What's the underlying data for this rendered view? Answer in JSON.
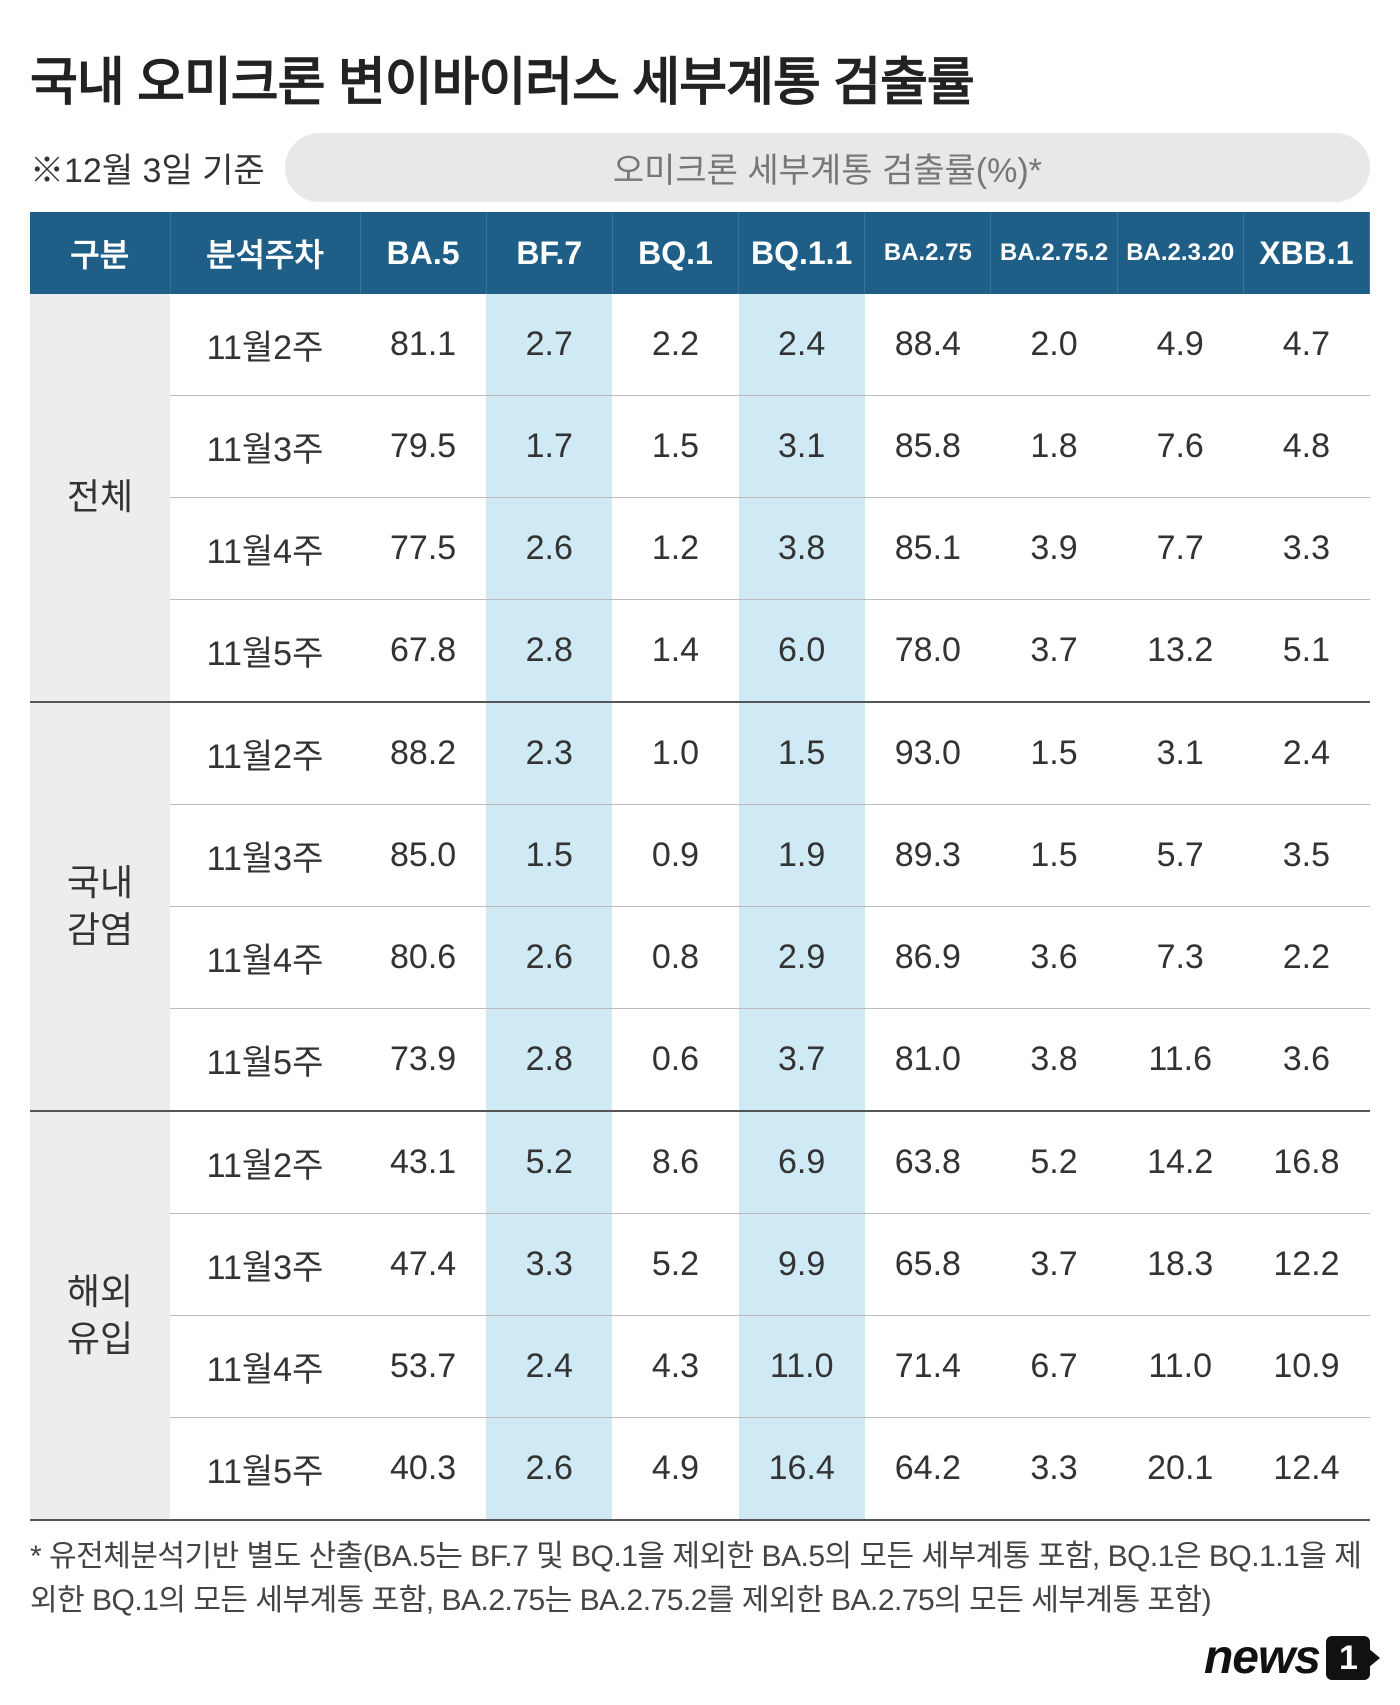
{
  "title": "국내 오미크론 변이바이러스 세부계통 검출률",
  "as_of": "※12월 3일 기준",
  "pill_label": "오미크론 세부계통 검출률(%)*",
  "table": {
    "header_bg": "#1f5f87",
    "header_fg": "#ffffff",
    "highlight_bg": "#cfe9f5",
    "group_bg": "#ededed",
    "columns": [
      {
        "key": "group",
        "label": "구분"
      },
      {
        "key": "week",
        "label": "분석주차"
      },
      {
        "key": "ba5",
        "label": "BA.5"
      },
      {
        "key": "bf7",
        "label": "BF.7",
        "highlight": true
      },
      {
        "key": "bq1",
        "label": "BQ.1"
      },
      {
        "key": "bq11",
        "label": "BQ.1.1",
        "highlight": true
      },
      {
        "key": "ba275",
        "label": "BA.2.75",
        "small": true
      },
      {
        "key": "ba2752",
        "label": "BA.2.75.2",
        "small": true
      },
      {
        "key": "ba2320",
        "label": "BA.2.3.20",
        "small": true
      },
      {
        "key": "xbb1",
        "label": "XBB.1"
      }
    ],
    "groups": [
      {
        "name": "전체",
        "rows": [
          {
            "week": "11월2주",
            "ba5": "81.1",
            "bf7": "2.7",
            "bq1": "2.2",
            "bq11": "2.4",
            "ba275": "88.4",
            "ba2752": "2.0",
            "ba2320": "4.9",
            "xbb1": "4.7"
          },
          {
            "week": "11월3주",
            "ba5": "79.5",
            "bf7": "1.7",
            "bq1": "1.5",
            "bq11": "3.1",
            "ba275": "85.8",
            "ba2752": "1.8",
            "ba2320": "7.6",
            "xbb1": "4.8"
          },
          {
            "week": "11월4주",
            "ba5": "77.5",
            "bf7": "2.6",
            "bq1": "1.2",
            "bq11": "3.8",
            "ba275": "85.1",
            "ba2752": "3.9",
            "ba2320": "7.7",
            "xbb1": "3.3"
          },
          {
            "week": "11월5주",
            "ba5": "67.8",
            "bf7": "2.8",
            "bq1": "1.4",
            "bq11": "6.0",
            "ba275": "78.0",
            "ba2752": "3.7",
            "ba2320": "13.2",
            "xbb1": "5.1"
          }
        ]
      },
      {
        "name": "국내\n감염",
        "rows": [
          {
            "week": "11월2주",
            "ba5": "88.2",
            "bf7": "2.3",
            "bq1": "1.0",
            "bq11": "1.5",
            "ba275": "93.0",
            "ba2752": "1.5",
            "ba2320": "3.1",
            "xbb1": "2.4"
          },
          {
            "week": "11월3주",
            "ba5": "85.0",
            "bf7": "1.5",
            "bq1": "0.9",
            "bq11": "1.9",
            "ba275": "89.3",
            "ba2752": "1.5",
            "ba2320": "5.7",
            "xbb1": "3.5"
          },
          {
            "week": "11월4주",
            "ba5": "80.6",
            "bf7": "2.6",
            "bq1": "0.8",
            "bq11": "2.9",
            "ba275": "86.9",
            "ba2752": "3.6",
            "ba2320": "7.3",
            "xbb1": "2.2"
          },
          {
            "week": "11월5주",
            "ba5": "73.9",
            "bf7": "2.8",
            "bq1": "0.6",
            "bq11": "3.7",
            "ba275": "81.0",
            "ba2752": "3.8",
            "ba2320": "11.6",
            "xbb1": "3.6"
          }
        ]
      },
      {
        "name": "해외\n유입",
        "rows": [
          {
            "week": "11월2주",
            "ba5": "43.1",
            "bf7": "5.2",
            "bq1": "8.6",
            "bq11": "6.9",
            "ba275": "63.8",
            "ba2752": "5.2",
            "ba2320": "14.2",
            "xbb1": "16.8"
          },
          {
            "week": "11월3주",
            "ba5": "47.4",
            "bf7": "3.3",
            "bq1": "5.2",
            "bq11": "9.9",
            "ba275": "65.8",
            "ba2752": "3.7",
            "ba2320": "18.3",
            "xbb1": "12.2"
          },
          {
            "week": "11월4주",
            "ba5": "53.7",
            "bf7": "2.4",
            "bq1": "4.3",
            "bq11": "11.0",
            "ba275": "71.4",
            "ba2752": "6.7",
            "ba2320": "11.0",
            "xbb1": "10.9"
          },
          {
            "week": "11월5주",
            "ba5": "40.3",
            "bf7": "2.6",
            "bq1": "4.9",
            "bq11": "16.4",
            "ba275": "64.2",
            "ba2752": "3.3",
            "ba2320": "20.1",
            "xbb1": "12.4"
          }
        ]
      }
    ]
  },
  "footnote": "* 유전체분석기반 별도 산출(BA.5는 BF.7 및 BQ.1을 제외한 BA.5의 모든 세부계통 포함, BQ.1은 BQ.1.1을 제외한 BQ.1의 모든 세부계통 포함, BA.2.75는 BA.2.75.2를 제외한 BA.2.75의 모든 세부계통 포함)",
  "source": {
    "brand": "news",
    "suffix": "1"
  }
}
